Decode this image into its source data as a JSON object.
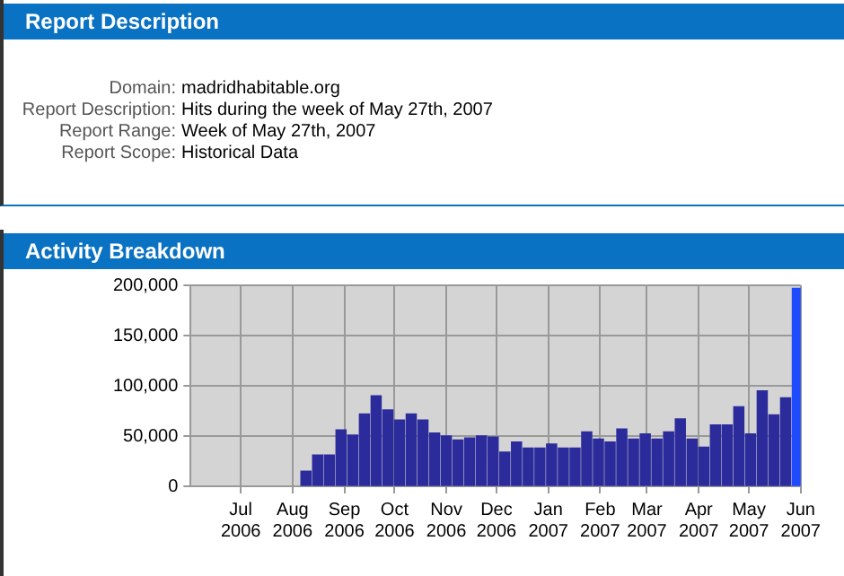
{
  "chart_data": {
    "type": "bar",
    "title": "Activity Breakdown",
    "annotations": [
      "Report Description",
      "Domain: madridhabitable.org",
      "Report Description: Hits during the week of May 27th, 2007",
      "Report Range: Week of May 27th, 2007",
      "Report Scope: Historical Data"
    ],
    "x": [
      "2006-08-09",
      "2006-08-16",
      "2006-08-23",
      "2006-08-30",
      "2006-09-06",
      "2006-09-13",
      "2006-09-20",
      "2006-09-27",
      "2006-10-04",
      "2006-10-11",
      "2006-10-18",
      "2006-10-25",
      "2006-11-01",
      "2006-11-08",
      "2006-11-15",
      "2006-11-22",
      "2006-11-29",
      "2006-12-06",
      "2006-12-13",
      "2006-12-20",
      "2006-12-27",
      "2007-01-03",
      "2007-01-10",
      "2007-01-17",
      "2007-01-24",
      "2007-01-31",
      "2007-02-07",
      "2007-02-14",
      "2007-02-21",
      "2007-02-28",
      "2007-03-07",
      "2007-03-14",
      "2007-03-21",
      "2007-03-28",
      "2007-04-04",
      "2007-04-11",
      "2007-04-18",
      "2007-04-25",
      "2007-05-02",
      "2007-05-09",
      "2007-05-16",
      "2007-05-23",
      "2007-05-30"
    ],
    "values": [
      15000,
      31000,
      31000,
      56000,
      51000,
      72000,
      90000,
      76000,
      66000,
      72000,
      66000,
      53000,
      50000,
      46000,
      48000,
      50000,
      49000,
      34000,
      44000,
      38000,
      38000,
      42000,
      38000,
      38000,
      54000,
      47000,
      44000,
      57000,
      47000,
      52000,
      47000,
      54000,
      67000,
      47000,
      39000,
      61000,
      61000,
      79000,
      52000,
      95000,
      71000,
      88000,
      197000
    ],
    "colors": [
      "#2b2b9c",
      "#2b2b9c",
      "#2b2b9c",
      "#2b2b9c",
      "#2b2b9c",
      "#2b2b9c",
      "#2b2b9c",
      "#2b2b9c",
      "#2b2b9c",
      "#2b2b9c",
      "#2b2b9c",
      "#2b2b9c",
      "#2b2b9c",
      "#2b2b9c",
      "#2b2b9c",
      "#2b2b9c",
      "#2b2b9c",
      "#2b2b9c",
      "#2b2b9c",
      "#2b2b9c",
      "#2b2b9c",
      "#2b2b9c",
      "#2b2b9c",
      "#2b2b9c",
      "#2b2b9c",
      "#2b2b9c",
      "#2b2b9c",
      "#2b2b9c",
      "#2b2b9c",
      "#2b2b9c",
      "#2b2b9c",
      "#2b2b9c",
      "#2b2b9c",
      "#2b2b9c",
      "#2b2b9c",
      "#2b2b9c",
      "#2b2b9c",
      "#2b2b9c",
      "#2b2b9c",
      "#2b2b9c",
      "#2b2b9c",
      "#2b2b9c",
      "#1f4bff"
    ],
    "xlim": [
      "2006-06-01",
      "2007-06-01"
    ],
    "xticks": [
      {
        "value": "2006-07-01",
        "label": "Jul 2006"
      },
      {
        "value": "2006-08-01",
        "label": "Aug 2006"
      },
      {
        "value": "2006-09-01",
        "label": "Sep 2006"
      },
      {
        "value": "2006-10-01",
        "label": "Oct 2006"
      },
      {
        "value": "2006-11-01",
        "label": "Nov 2006"
      },
      {
        "value": "2006-12-01",
        "label": "Dec 2006"
      },
      {
        "value": "2007-01-01",
        "label": "Jan 2007"
      },
      {
        "value": "2007-02-01",
        "label": "Feb 2007"
      },
      {
        "value": "2007-03-01",
        "label": "Mar 2007"
      },
      {
        "value": "2007-04-01",
        "label": "Apr 2007"
      },
      {
        "value": "2007-05-01",
        "label": "May 2007"
      },
      {
        "value": "2007-06-01",
        "label": "Jun 2007"
      }
    ],
    "ylim": [
      0,
      200000
    ],
    "yticks": [
      0,
      {
        "value": 50000,
        "label": "50,000"
      },
      {
        "value": 100000,
        "label": "100,000"
      },
      {
        "value": 150000,
        "label": "150,000"
      },
      {
        "value": 200000,
        "label": "200,000"
      }
    ],
    "grid": true
  }
}
